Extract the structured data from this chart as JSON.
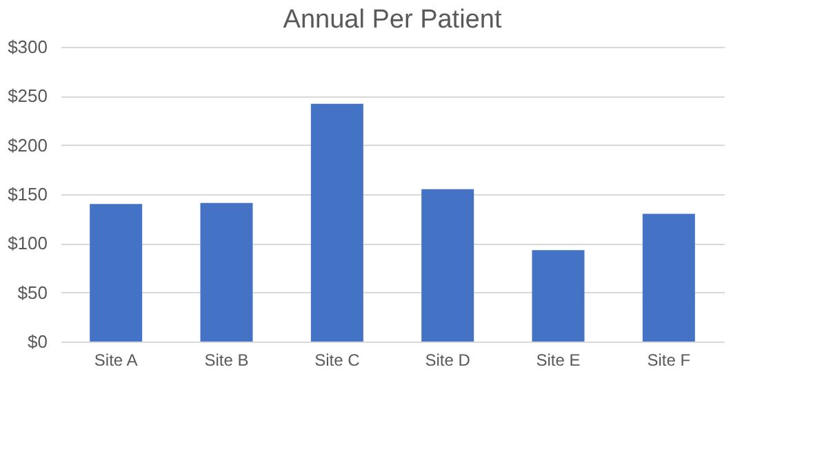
{
  "chart_data": {
    "type": "bar",
    "title": "Annual Per Patient",
    "categories": [
      "Site A",
      "Site B",
      "Site C",
      "Site D",
      "Site E",
      "Site F"
    ],
    "values": [
      140,
      141,
      242,
      155,
      93,
      130
    ],
    "color": "#4472c4",
    "ylim": [
      0,
      300
    ],
    "yticks": [
      {
        "value": 0,
        "label": "$0"
      },
      {
        "value": 50,
        "label": "$50"
      },
      {
        "value": 100,
        "label": "$100"
      },
      {
        "value": 150,
        "label": "$150"
      },
      {
        "value": 200,
        "label": "$200"
      },
      {
        "value": 250,
        "label": "$250"
      },
      {
        "value": 300,
        "label": "$300"
      }
    ],
    "grid": "y"
  }
}
